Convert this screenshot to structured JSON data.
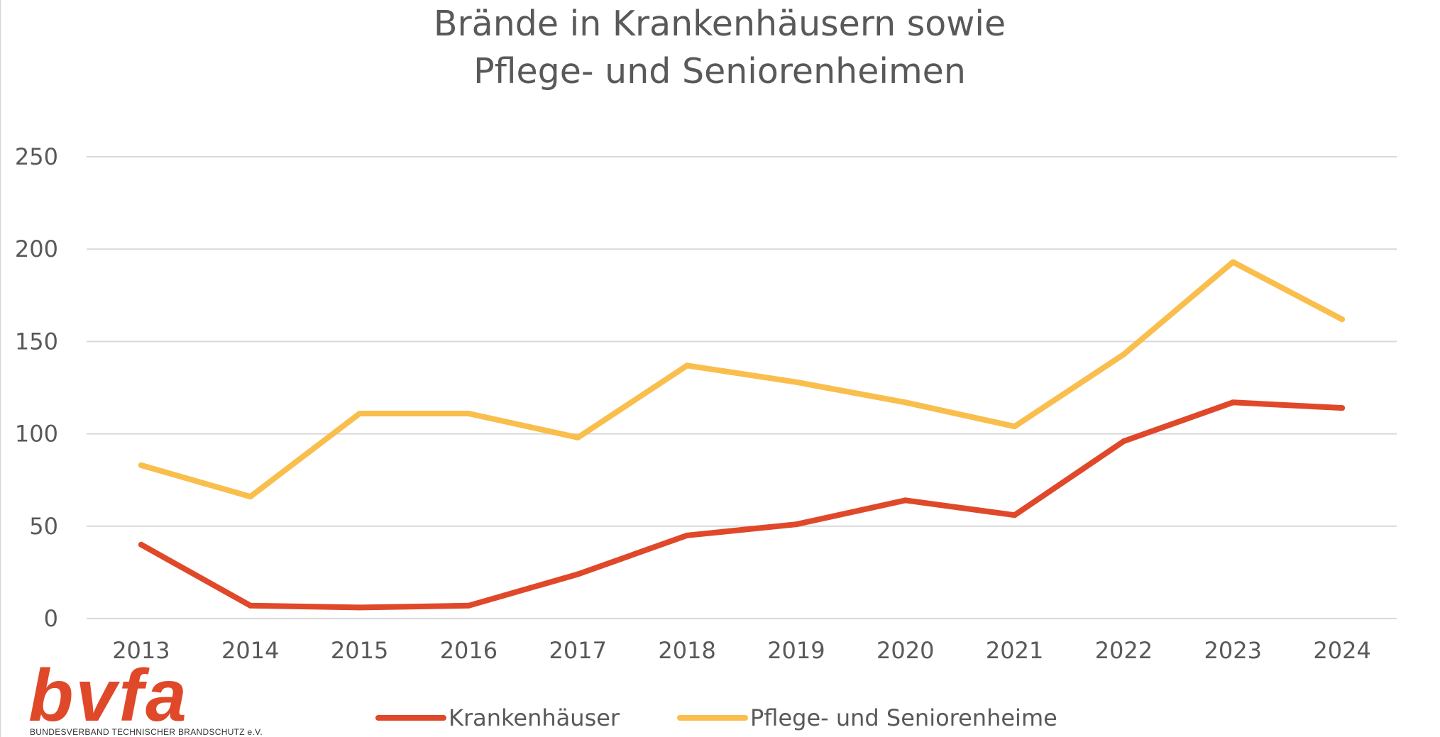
{
  "chart_data": {
    "type": "line",
    "title_lines": [
      "Brände in Krankenhäusern sowie",
      "Pflege- und Seniorenheimen"
    ],
    "xlabel": "",
    "ylabel": "",
    "categories": [
      "2013",
      "2014",
      "2015",
      "2016",
      "2017",
      "2018",
      "2019",
      "2020",
      "2021",
      "2022",
      "2023",
      "2024"
    ],
    "ylim": [
      0,
      250
    ],
    "yticks": [
      0,
      50,
      100,
      150,
      200,
      250
    ],
    "grid": true,
    "legend_position": "bottom",
    "series": [
      {
        "name": "Krankenhäuser",
        "color": "#E0482A",
        "values": [
          40,
          7,
          6,
          7,
          24,
          45,
          51,
          64,
          56,
          96,
          117,
          114
        ]
      },
      {
        "name": "Pflege- und Seniorenheime",
        "color": "#F9BE4C",
        "values": [
          83,
          66,
          111,
          111,
          98,
          137,
          128,
          117,
          104,
          143,
          193,
          162
        ]
      }
    ]
  },
  "logo": {
    "wordmark": "bvfa",
    "tagline": "BUNDESVERBAND TECHNISCHER BRANDSCHUTZ e.V.",
    "color": "#E0482A"
  }
}
